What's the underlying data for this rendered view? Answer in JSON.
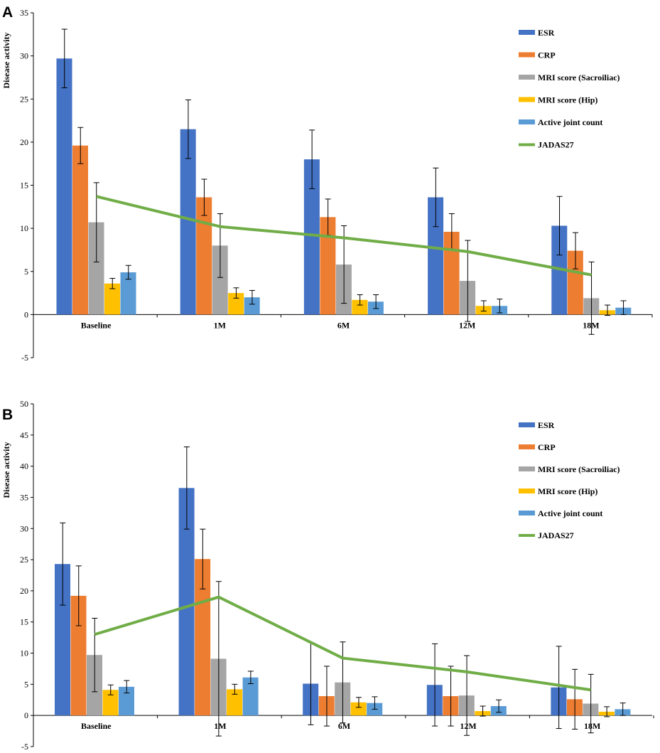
{
  "colors": {
    "ESR": "#4472C4",
    "CRP": "#ED7D31",
    "MRI score (Sacroiliac)": "#A5A5A5",
    "MRI score (Hip)": "#FFC000",
    "Active joint count": "#5B9BD5",
    "JADAS27": "#70AD47"
  },
  "chart_data": [
    {
      "panel": "A",
      "type": "bar",
      "ylabel": "Disease activity",
      "ylim": [
        -5,
        35
      ],
      "yticks": [
        -5,
        0,
        5,
        10,
        15,
        20,
        25,
        30,
        35
      ],
      "categories": [
        "Baseline",
        "1M",
        "6M",
        "12M",
        "18M"
      ],
      "legend_position": "top-right",
      "series": [
        {
          "name": "ESR",
          "values": [
            29.7,
            21.5,
            18.0,
            13.6,
            10.3
          ],
          "errors": [
            3.4,
            3.4,
            3.4,
            3.4,
            3.4
          ]
        },
        {
          "name": "CRP",
          "values": [
            19.6,
            13.6,
            11.3,
            9.6,
            7.4
          ],
          "errors": [
            2.1,
            2.1,
            2.1,
            2.1,
            2.1
          ]
        },
        {
          "name": "MRI score (Sacroiliac)",
          "values": [
            10.7,
            8.0,
            5.8,
            3.9,
            1.9
          ],
          "errors": [
            4.6,
            3.7,
            4.5,
            4.7,
            4.2
          ]
        },
        {
          "name": "MRI score (Hip)",
          "values": [
            3.6,
            2.5,
            1.7,
            1.0,
            0.5
          ],
          "errors": [
            0.6,
            0.6,
            0.6,
            0.6,
            0.6
          ]
        },
        {
          "name": "Active joint count",
          "values": [
            4.9,
            2.0,
            1.5,
            1.0,
            0.8
          ],
          "errors": [
            0.8,
            0.8,
            0.8,
            0.8,
            0.8
          ]
        }
      ],
      "line": {
        "name": "JADAS27",
        "values": [
          13.7,
          10.2,
          8.9,
          7.3,
          4.6
        ]
      }
    },
    {
      "panel": "B",
      "type": "bar",
      "ylabel": "Disease activity",
      "ylim": [
        -5,
        50
      ],
      "yticks": [
        -5,
        0,
        5,
        10,
        15,
        20,
        25,
        30,
        35,
        40,
        45,
        50
      ],
      "categories": [
        "Baseline",
        "1M",
        "6M",
        "12M",
        "18M"
      ],
      "legend_position": "top-right",
      "series": [
        {
          "name": "ESR",
          "values": [
            24.3,
            36.5,
            5.1,
            4.9,
            4.5
          ],
          "errors": [
            6.6,
            6.6,
            6.6,
            6.6,
            6.6
          ]
        },
        {
          "name": "CRP",
          "values": [
            19.2,
            25.1,
            3.1,
            3.1,
            2.6
          ],
          "errors": [
            4.8,
            4.8,
            4.8,
            4.8,
            4.8
          ]
        },
        {
          "name": "MRI score (Sacroiliac)",
          "values": [
            9.7,
            9.1,
            5.3,
            3.2,
            1.9
          ],
          "errors": [
            5.9,
            12.4,
            6.5,
            6.4,
            4.7
          ]
        },
        {
          "name": "MRI score (Hip)",
          "values": [
            4.1,
            4.2,
            2.1,
            0.7,
            0.6
          ],
          "errors": [
            0.8,
            0.8,
            0.8,
            0.8,
            0.8
          ]
        },
        {
          "name": "Active joint count",
          "values": [
            4.6,
            6.1,
            2.0,
            1.5,
            1.0
          ],
          "errors": [
            1.0,
            1.0,
            1.0,
            1.0,
            1.0
          ]
        }
      ],
      "line": {
        "name": "JADAS27",
        "values": [
          13.0,
          19.0,
          9.2,
          7.0,
          4.1
        ]
      }
    }
  ]
}
